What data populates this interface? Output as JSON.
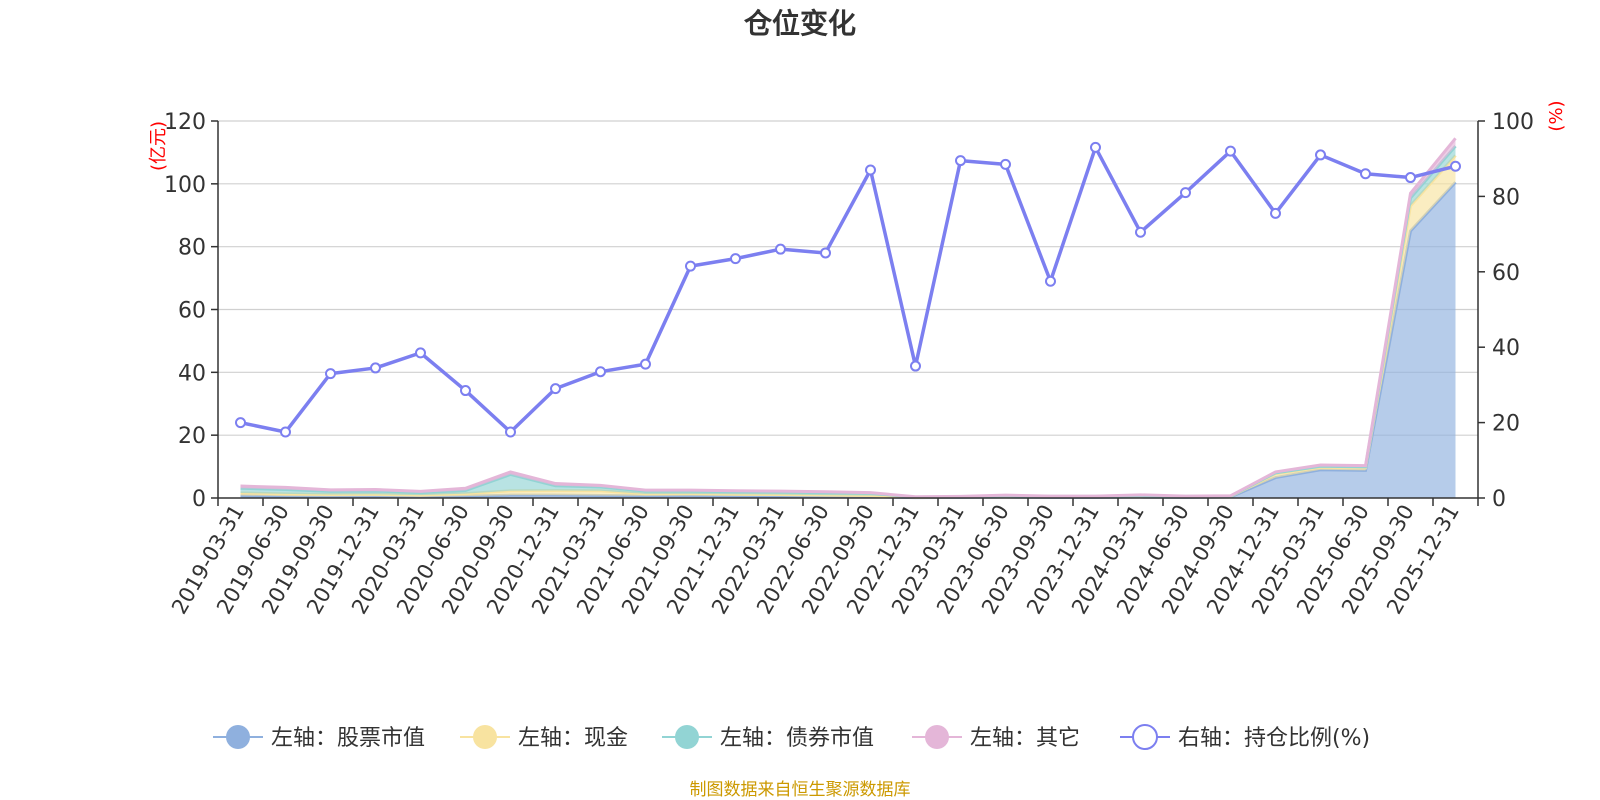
{
  "chart_data": {
    "type": "area",
    "title": "仓位变化",
    "left_unit": "(亿元)",
    "right_unit": "(%)",
    "left_ylim": [
      0,
      120
    ],
    "left_ticks": [
      "0",
      "20",
      "40",
      "60",
      "80",
      "100",
      "120"
    ],
    "right_ylim": [
      0,
      100
    ],
    "right_ticks": [
      "0",
      "20",
      "40",
      "60",
      "80",
      "100"
    ],
    "grid": true,
    "legend_position": "bottom",
    "categories": [
      "2019-03-31",
      "2019-06-30",
      "2019-09-30",
      "2019-12-31",
      "2020-03-31",
      "2020-06-30",
      "2020-09-30",
      "2020-12-31",
      "2021-03-31",
      "2021-06-30",
      "2021-09-30",
      "2021-12-31",
      "2022-03-31",
      "2022-06-30",
      "2022-09-30",
      "2022-12-31",
      "2023-03-31",
      "2023-06-30",
      "2023-09-30",
      "2023-12-31",
      "2024-03-31",
      "2024-06-30",
      "2024-09-30",
      "2024-12-31",
      "2025-03-31",
      "2025-06-30",
      "2025-09-30",
      "2025-12-31"
    ],
    "series": [
      {
        "name": "左轴：股票市值",
        "axis": "left",
        "kind": "area",
        "color": "#8fb0de",
        "values": [
          0.8,
          0.6,
          0.5,
          0.6,
          0.4,
          0.6,
          0.9,
          0.9,
          0.8,
          0.7,
          0.8,
          0.7,
          0.6,
          0.5,
          0.4,
          0.1,
          0.2,
          0.3,
          0.2,
          0.2,
          0.3,
          0.2,
          0.3,
          6.5,
          9.0,
          8.8,
          85,
          100.5
        ]
      },
      {
        "name": "左轴：现金",
        "axis": "left",
        "kind": "area",
        "color": "#f8e3a0",
        "values": [
          0.8,
          0.7,
          0.6,
          0.6,
          0.5,
          0.8,
          1.4,
          1.5,
          1.5,
          0.6,
          0.5,
          0.5,
          0.5,
          0.4,
          0.4,
          0.1,
          0.1,
          0.3,
          0.2,
          0.2,
          0.3,
          0.2,
          0.2,
          1.2,
          0.8,
          0.8,
          8.0,
          8.5
        ]
      },
      {
        "name": "左轴：债券市值",
        "axis": "left",
        "kind": "area",
        "color": "#92d4d4",
        "values": [
          1.5,
          1.4,
          1.0,
          1.0,
          0.8,
          1.0,
          5.2,
          1.5,
          1.2,
          0.9,
          0.9,
          0.8,
          0.8,
          0.8,
          0.7,
          0.1,
          0.1,
          0.1,
          0.1,
          0.1,
          0.1,
          0.1,
          0.1,
          0.3,
          0.3,
          0.3,
          2.5,
          3.0
        ]
      },
      {
        "name": "左轴：其它",
        "axis": "left",
        "kind": "area",
        "color": "#e4b6d8",
        "values": [
          0.7,
          0.7,
          0.5,
          0.5,
          0.4,
          0.7,
          0.8,
          0.7,
          0.5,
          0.3,
          0.3,
          0.3,
          0.3,
          0.3,
          0.2,
          0.1,
          0.1,
          0.2,
          0.1,
          0.1,
          0.3,
          0.1,
          0.1,
          0.3,
          0.4,
          0.4,
          1.5,
          2.5
        ]
      },
      {
        "name": "右轴：持仓比例(%)",
        "axis": "right",
        "kind": "line",
        "color": "#7c7ff0",
        "values": [
          20.0,
          17.5,
          33.0,
          34.5,
          38.5,
          28.5,
          17.5,
          29.0,
          33.5,
          35.5,
          61.5,
          63.5,
          66.0,
          65.0,
          87.0,
          35.0,
          89.5,
          88.5,
          57.5,
          93.0,
          70.5,
          81.0,
          92.0,
          75.5,
          91.0,
          86.0,
          85.0,
          88.0
        ]
      }
    ],
    "source": "制图数据来自恒生聚源数据库"
  }
}
